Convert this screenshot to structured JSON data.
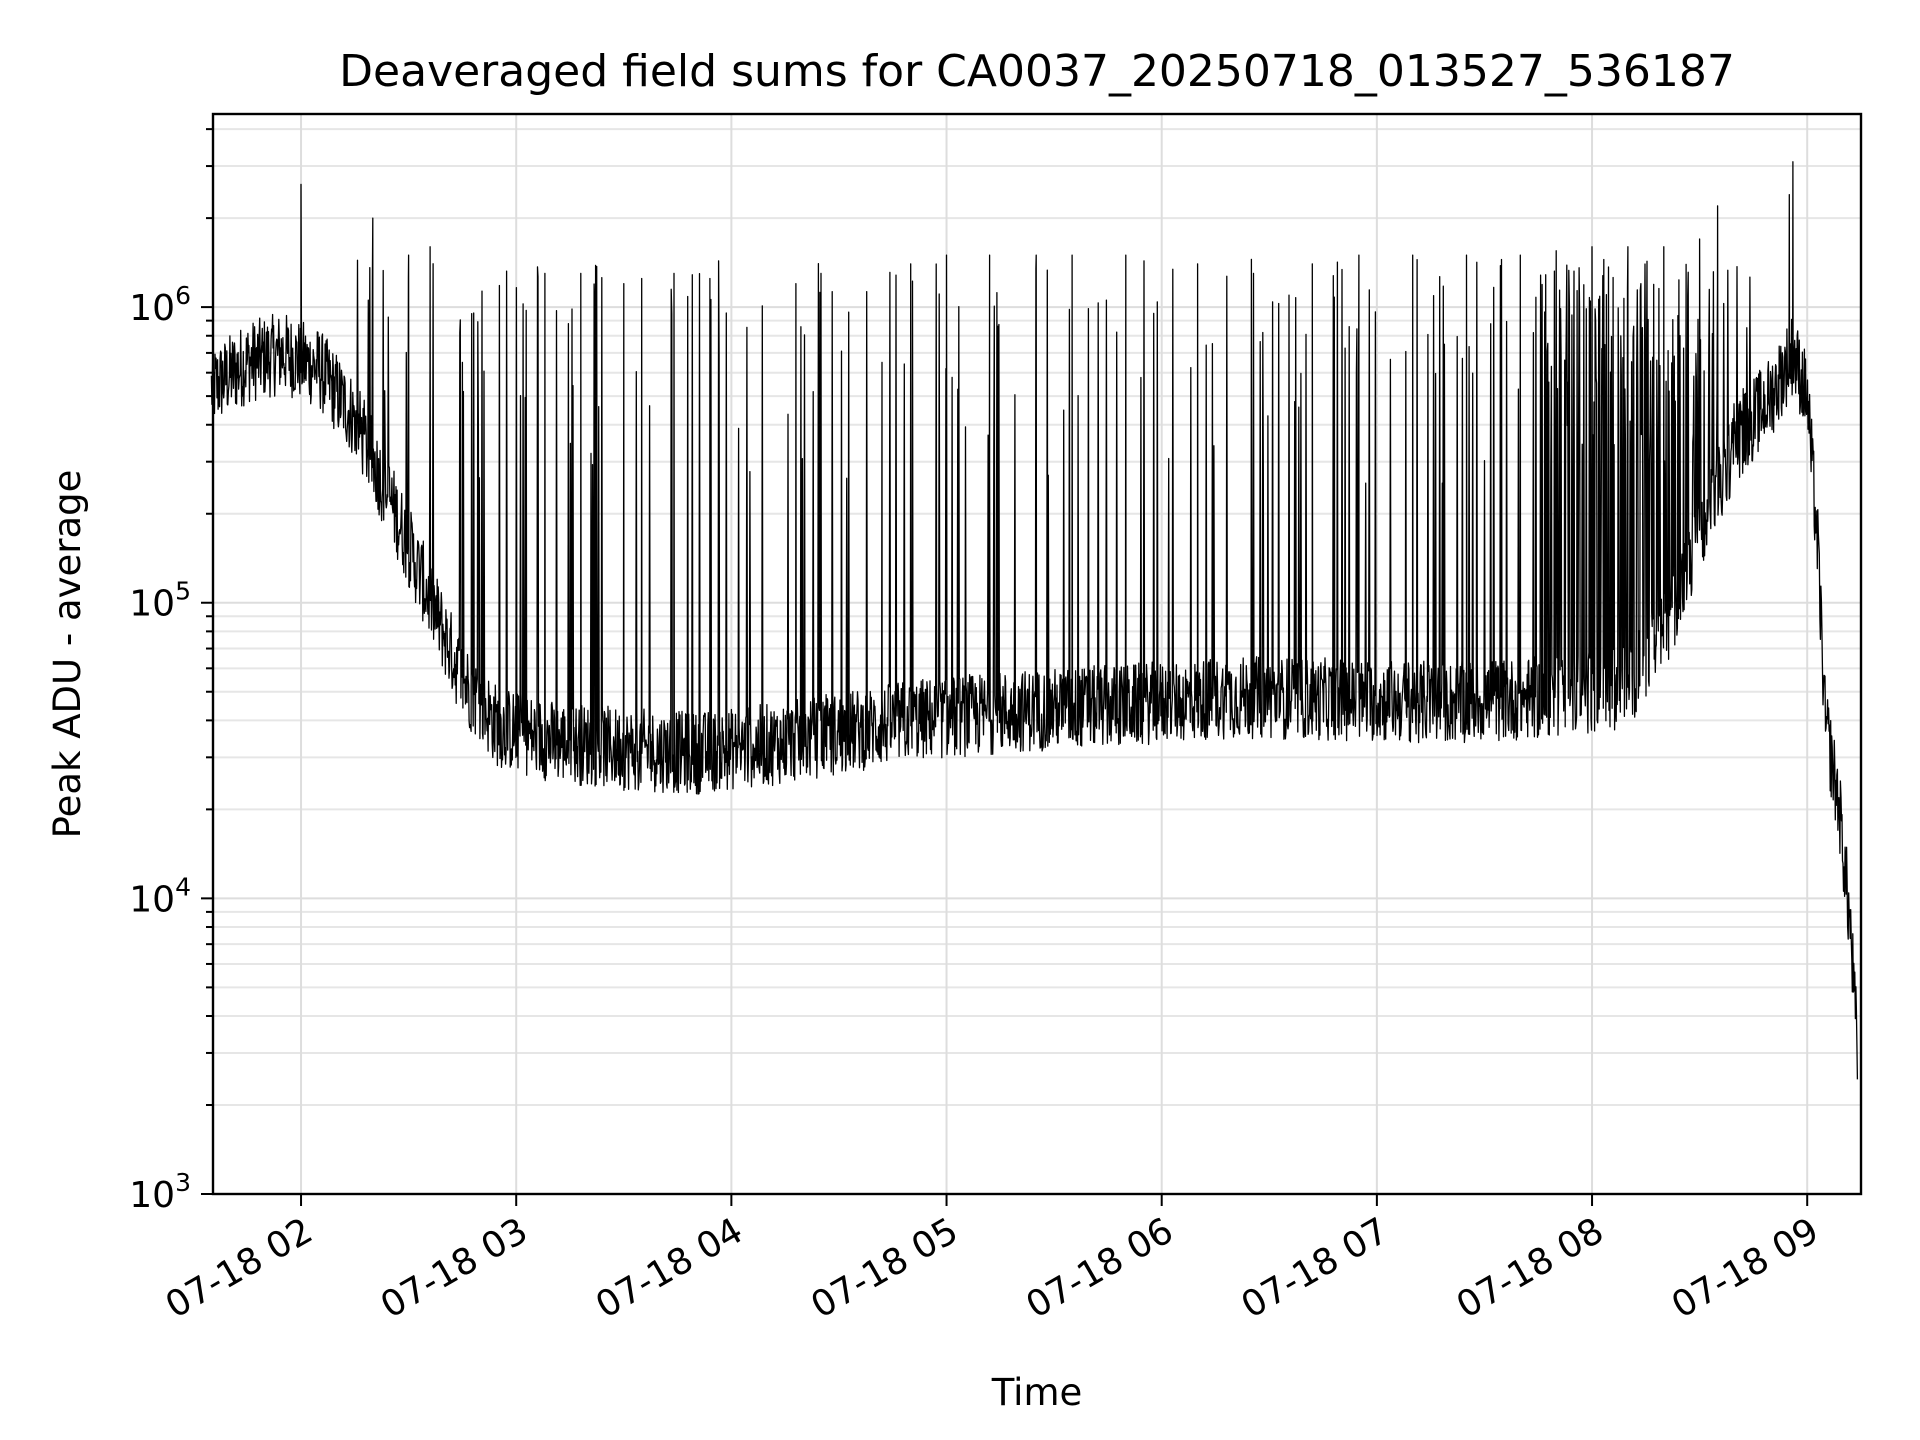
{
  "chart_data": {
    "type": "line",
    "title": "Deaveraged field sums for CA0037_20250718_013527_536187",
    "xlabel": "Time",
    "ylabel": "Peak ADU - average",
    "yscale": "log",
    "ylim": [
      1000,
      4500000
    ],
    "xlim": [
      "2025-07-18 01:35:27",
      "2025-07-18 09:15:00"
    ],
    "grid": true,
    "x_ticks": [
      {
        "t": "2025-07-18 02:00",
        "label": "07-18 02"
      },
      {
        "t": "2025-07-18 03:00",
        "label": "07-18 03"
      },
      {
        "t": "2025-07-18 04:00",
        "label": "07-18 04"
      },
      {
        "t": "2025-07-18 05:00",
        "label": "07-18 05"
      },
      {
        "t": "2025-07-18 06:00",
        "label": "07-18 06"
      },
      {
        "t": "2025-07-18 07:00",
        "label": "07-18 07"
      },
      {
        "t": "2025-07-18 08:00",
        "label": "07-18 08"
      },
      {
        "t": "2025-07-18 09:00",
        "label": "07-18 09"
      }
    ],
    "y_ticks": [
      {
        "value": 1000,
        "base": "10",
        "exp": "3"
      },
      {
        "value": 10000,
        "base": "10",
        "exp": "4"
      },
      {
        "value": 100000,
        "base": "10",
        "exp": "5"
      },
      {
        "value": 1000000,
        "base": "10",
        "exp": "6"
      }
    ],
    "series": [
      {
        "color": "#000000",
        "baseline": [
          [
            "2025-07-18 01:35",
            530000
          ],
          [
            "2025-07-18 01:45",
            650000
          ],
          [
            "2025-07-18 01:55",
            700000
          ],
          [
            "2025-07-18 02:05",
            620000
          ],
          [
            "2025-07-18 02:15",
            420000
          ],
          [
            "2025-07-18 02:25",
            220000
          ],
          [
            "2025-07-18 02:35",
            110000
          ],
          [
            "2025-07-18 02:45",
            55000
          ],
          [
            "2025-07-18 02:55",
            38000
          ],
          [
            "2025-07-18 03:10",
            34000
          ],
          [
            "2025-07-18 03:30",
            32000
          ],
          [
            "2025-07-18 03:50",
            31000
          ],
          [
            "2025-07-18 04:10",
            33000
          ],
          [
            "2025-07-18 04:30",
            36000
          ],
          [
            "2025-07-18 04:50",
            40000
          ],
          [
            "2025-07-18 05:20",
            43000
          ],
          [
            "2025-07-18 05:50",
            45000
          ],
          [
            "2025-07-18 06:20",
            48000
          ],
          [
            "2025-07-18 06:50",
            47000
          ],
          [
            "2025-07-18 07:20",
            46000
          ],
          [
            "2025-07-18 07:50",
            48000
          ],
          [
            "2025-07-18 08:10",
            52000
          ],
          [
            "2025-07-18 08:20",
            80000
          ],
          [
            "2025-07-18 08:30",
            160000
          ],
          [
            "2025-07-18 08:40",
            350000
          ],
          [
            "2025-07-18 08:50",
            500000
          ],
          [
            "2025-07-18 08:56",
            700000
          ],
          [
            "2025-07-18 09:00",
            500000
          ],
          [
            "2025-07-18 09:03",
            150000
          ],
          [
            "2025-07-18 09:05",
            40000
          ],
          [
            "2025-07-18 09:09",
            20000
          ],
          [
            "2025-07-18 09:12",
            8000
          ],
          [
            "2025-07-18 09:14",
            3000
          ]
        ],
        "peaks": [
          [
            "2025-07-18 02:00",
            2600000
          ],
          [
            "2025-07-18 02:20",
            2000000
          ],
          [
            "2025-07-18 02:30",
            1500000
          ],
          [
            "2025-07-18 02:36",
            1600000
          ],
          [
            "2025-07-18 02:45",
            650000
          ],
          [
            "2025-07-18 03:08",
            1300000
          ],
          [
            "2025-07-18 03:18",
            1300000
          ],
          [
            "2025-07-18 03:30",
            1200000
          ],
          [
            "2025-07-18 03:35",
            1250000
          ],
          [
            "2025-07-18 03:44",
            1300000
          ],
          [
            "2025-07-18 03:54",
            1250000
          ],
          [
            "2025-07-18 04:18",
            1200000
          ],
          [
            "2025-07-18 04:25",
            1300000
          ],
          [
            "2025-07-18 04:42",
            650000
          ],
          [
            "2025-07-18 04:50",
            1400000
          ],
          [
            "2025-07-18 05:00",
            1500000
          ],
          [
            "2025-07-18 05:12",
            1500000
          ],
          [
            "2025-07-18 05:25",
            1500000
          ],
          [
            "2025-07-18 05:35",
            1500000
          ],
          [
            "2025-07-18 05:50",
            1500000
          ],
          [
            "2025-07-18 06:10",
            1400000
          ],
          [
            "2025-07-18 06:25",
            1450000
          ],
          [
            "2025-07-18 06:42",
            1400000
          ],
          [
            "2025-07-18 06:55",
            1500000
          ],
          [
            "2025-07-18 07:10",
            1500000
          ],
          [
            "2025-07-18 07:25",
            1500000
          ],
          [
            "2025-07-18 07:40",
            1500000
          ],
          [
            "2025-07-18 07:50",
            1550000
          ],
          [
            "2025-07-18 08:00",
            1600000
          ],
          [
            "2025-07-18 08:10",
            1600000
          ],
          [
            "2025-07-18 08:20",
            1600000
          ],
          [
            "2025-07-18 08:30",
            1700000
          ],
          [
            "2025-07-18 08:35",
            2200000
          ],
          [
            "2025-07-18 08:55",
            2400000
          ],
          [
            "2025-07-18 08:56",
            3100000
          ]
        ]
      }
    ]
  }
}
